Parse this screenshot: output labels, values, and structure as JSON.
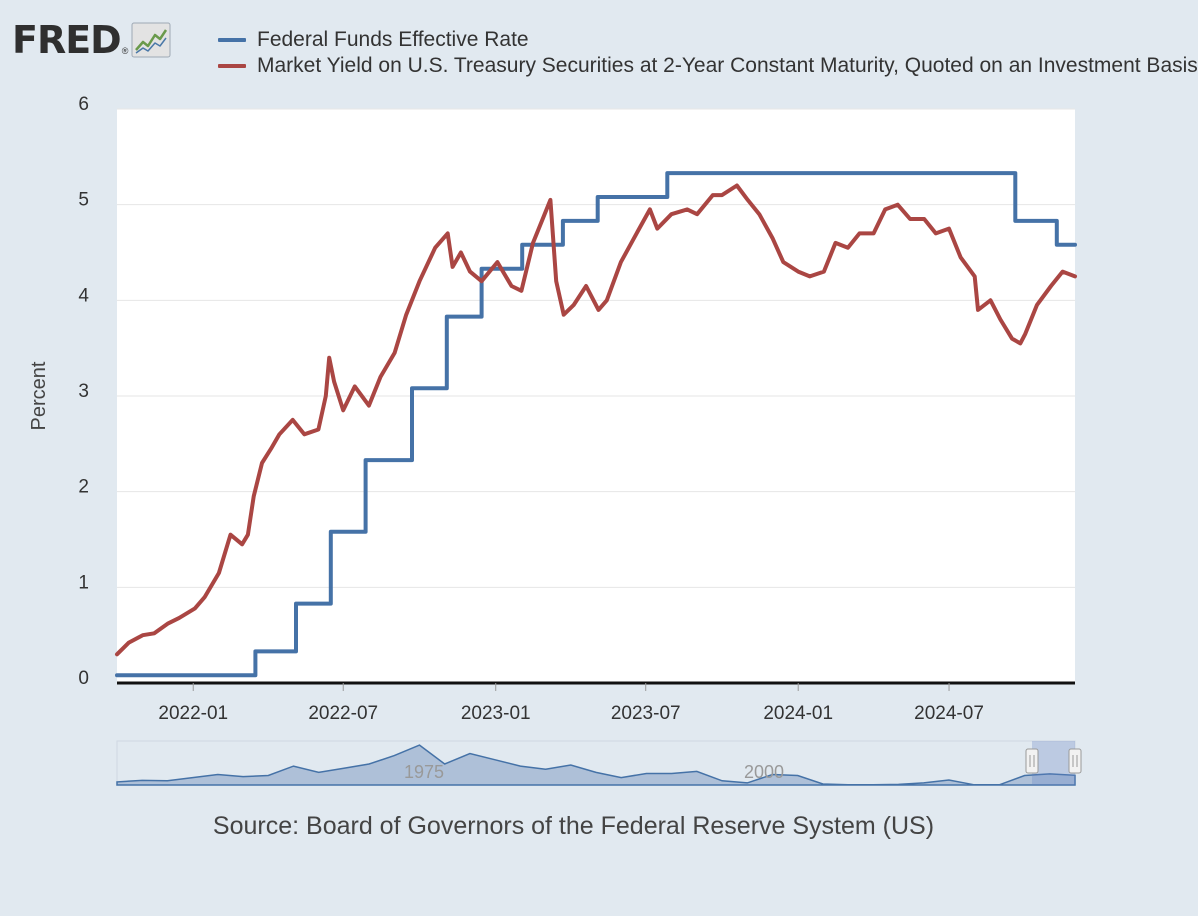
{
  "logo": {
    "text": "FRED",
    "trademark": "®",
    "icon": "line-chart-icon"
  },
  "colors": {
    "background": "#e1e9f0",
    "plot_bg": "#ffffff",
    "series_blue": "#4572a7",
    "series_red": "#aa4643",
    "navigator_fill": "#a4b9d4",
    "navigator_line": "#4572a7"
  },
  "source": "Source: Board of Governors of the Federal Reserve System (US)",
  "chart_data": {
    "type": "line",
    "title": "",
    "xlabel": "",
    "ylabel": "Percent",
    "ylim": [
      0,
      6
    ],
    "yticks": [
      "0",
      "1",
      "2",
      "3",
      "4",
      "5",
      "6"
    ],
    "xlim": [
      "2021-10-01",
      "2024-11-30"
    ],
    "xtick_labels": [
      "2022-01",
      "2022-07",
      "2023-01",
      "2023-07",
      "2024-01",
      "2024-07"
    ],
    "series": [
      {
        "name": "Federal Funds Effective Rate",
        "color": "#4572a7",
        "style": "step",
        "points": [
          [
            "2021-10-01",
            0.08
          ],
          [
            "2022-03-17",
            0.08
          ],
          [
            "2022-03-17",
            0.33
          ],
          [
            "2022-05-05",
            0.33
          ],
          [
            "2022-05-05",
            0.83
          ],
          [
            "2022-06-16",
            0.83
          ],
          [
            "2022-06-16",
            1.58
          ],
          [
            "2022-07-28",
            1.58
          ],
          [
            "2022-07-28",
            2.33
          ],
          [
            "2022-09-22",
            2.33
          ],
          [
            "2022-09-22",
            3.08
          ],
          [
            "2022-11-03",
            3.08
          ],
          [
            "2022-11-03",
            3.83
          ],
          [
            "2022-12-15",
            3.83
          ],
          [
            "2022-12-15",
            4.33
          ],
          [
            "2023-02-02",
            4.33
          ],
          [
            "2023-02-02",
            4.58
          ],
          [
            "2023-03-23",
            4.58
          ],
          [
            "2023-03-23",
            4.83
          ],
          [
            "2023-05-04",
            4.83
          ],
          [
            "2023-05-04",
            5.08
          ],
          [
            "2023-07-27",
            5.08
          ],
          [
            "2023-07-27",
            5.33
          ],
          [
            "2024-09-19",
            5.33
          ],
          [
            "2024-09-19",
            4.83
          ],
          [
            "2024-11-08",
            4.83
          ],
          [
            "2024-11-08",
            4.58
          ],
          [
            "2024-11-30",
            4.58
          ]
        ]
      },
      {
        "name": "Market Yield on U.S. Treasury Securities at 2-Year Constant Maturity, Quoted on an Investment Basis",
        "color": "#aa4643",
        "style": "line",
        "points": [
          [
            "2021-10-01",
            0.3
          ],
          [
            "2021-10-15",
            0.42
          ],
          [
            "2021-11-01",
            0.5
          ],
          [
            "2021-11-15",
            0.52
          ],
          [
            "2021-12-01",
            0.62
          ],
          [
            "2021-12-15",
            0.68
          ],
          [
            "2022-01-03",
            0.78
          ],
          [
            "2022-01-15",
            0.9
          ],
          [
            "2022-02-01",
            1.15
          ],
          [
            "2022-02-15",
            1.55
          ],
          [
            "2022-03-01",
            1.45
          ],
          [
            "2022-03-08",
            1.55
          ],
          [
            "2022-03-15",
            1.95
          ],
          [
            "2022-03-25",
            2.3
          ],
          [
            "2022-04-05",
            2.45
          ],
          [
            "2022-04-15",
            2.6
          ],
          [
            "2022-05-01",
            2.75
          ],
          [
            "2022-05-15",
            2.6
          ],
          [
            "2022-06-01",
            2.65
          ],
          [
            "2022-06-10",
            3.0
          ],
          [
            "2022-06-14",
            3.4
          ],
          [
            "2022-06-20",
            3.15
          ],
          [
            "2022-07-01",
            2.85
          ],
          [
            "2022-07-15",
            3.1
          ],
          [
            "2022-08-01",
            2.9
          ],
          [
            "2022-08-15",
            3.2
          ],
          [
            "2022-09-01",
            3.45
          ],
          [
            "2022-09-15",
            3.85
          ],
          [
            "2022-10-01",
            4.2
          ],
          [
            "2022-10-20",
            4.55
          ],
          [
            "2022-11-04",
            4.7
          ],
          [
            "2022-11-10",
            4.35
          ],
          [
            "2022-11-20",
            4.5
          ],
          [
            "2022-12-01",
            4.3
          ],
          [
            "2022-12-15",
            4.2
          ],
          [
            "2023-01-03",
            4.4
          ],
          [
            "2023-01-20",
            4.15
          ],
          [
            "2023-02-01",
            4.1
          ],
          [
            "2023-02-15",
            4.6
          ],
          [
            "2023-03-01",
            4.9
          ],
          [
            "2023-03-08",
            5.05
          ],
          [
            "2023-03-15",
            4.2
          ],
          [
            "2023-03-24",
            3.85
          ],
          [
            "2023-04-05",
            3.95
          ],
          [
            "2023-04-20",
            4.15
          ],
          [
            "2023-05-05",
            3.9
          ],
          [
            "2023-05-15",
            4.0
          ],
          [
            "2023-06-01",
            4.4
          ],
          [
            "2023-06-20",
            4.7
          ],
          [
            "2023-07-06",
            4.95
          ],
          [
            "2023-07-15",
            4.75
          ],
          [
            "2023-08-01",
            4.9
          ],
          [
            "2023-08-20",
            4.95
          ],
          [
            "2023-09-01",
            4.9
          ],
          [
            "2023-09-20",
            5.1
          ],
          [
            "2023-10-01",
            5.1
          ],
          [
            "2023-10-19",
            5.2
          ],
          [
            "2023-11-01",
            5.05
          ],
          [
            "2023-11-15",
            4.9
          ],
          [
            "2023-12-01",
            4.65
          ],
          [
            "2023-12-14",
            4.4
          ],
          [
            "2024-01-01",
            4.3
          ],
          [
            "2024-01-15",
            4.25
          ],
          [
            "2024-02-01",
            4.3
          ],
          [
            "2024-02-15",
            4.6
          ],
          [
            "2024-03-01",
            4.55
          ],
          [
            "2024-03-15",
            4.7
          ],
          [
            "2024-04-01",
            4.7
          ],
          [
            "2024-04-15",
            4.95
          ],
          [
            "2024-04-30",
            5.0
          ],
          [
            "2024-05-15",
            4.85
          ],
          [
            "2024-06-01",
            4.85
          ],
          [
            "2024-06-15",
            4.7
          ],
          [
            "2024-07-01",
            4.75
          ],
          [
            "2024-07-15",
            4.45
          ],
          [
            "2024-08-01",
            4.25
          ],
          [
            "2024-08-05",
            3.9
          ],
          [
            "2024-08-20",
            4.0
          ],
          [
            "2024-09-01",
            3.8
          ],
          [
            "2024-09-15",
            3.6
          ],
          [
            "2024-09-25",
            3.55
          ],
          [
            "2024-10-01",
            3.65
          ],
          [
            "2024-10-15",
            3.95
          ],
          [
            "2024-11-01",
            4.15
          ],
          [
            "2024-11-15",
            4.3
          ],
          [
            "2024-11-30",
            4.25
          ]
        ]
      }
    ],
    "navigator": {
      "labels": [
        "1975",
        "2000"
      ],
      "series_name": "Federal Funds Effective Rate (full history)",
      "values": [
        1.5,
        2.2,
        2.0,
        3.5,
        5.0,
        4.0,
        4.5,
        9.0,
        6.0,
        8.0,
        10.0,
        14.0,
        19.0,
        10.0,
        15.0,
        12.0,
        9.0,
        7.5,
        9.5,
        6.0,
        3.5,
        5.5,
        5.5,
        6.5,
        2.0,
        1.0,
        5.0,
        4.5,
        0.5,
        0.1,
        0.1,
        0.3,
        1.0,
        2.4,
        0.1,
        0.1,
        4.5,
        5.3,
        4.6
      ]
    }
  }
}
